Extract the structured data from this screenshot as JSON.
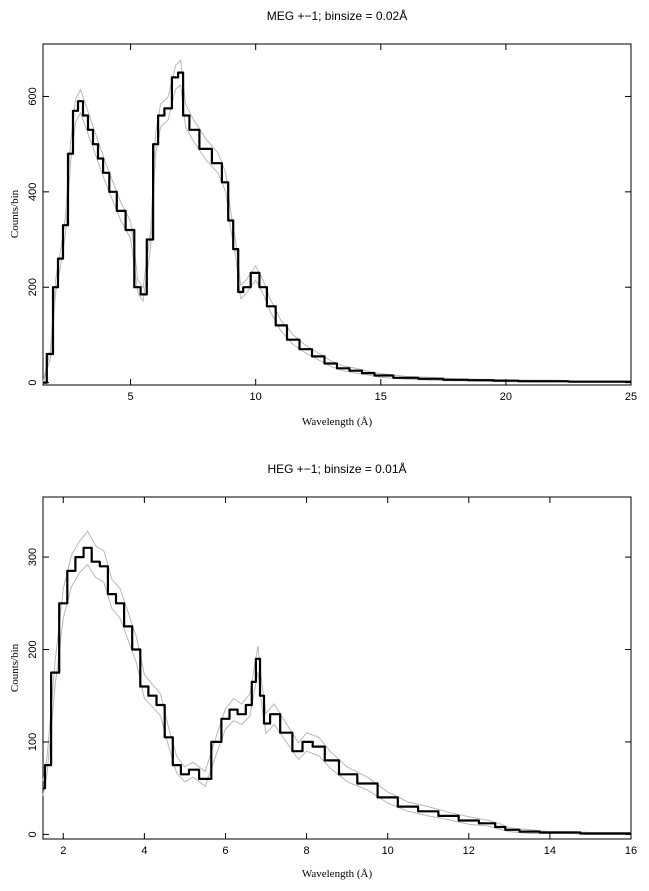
{
  "chart_data": [
    {
      "type": "line",
      "title": "MEG +−1; binsize = 0.02Å",
      "xlabel": "Wavelength (Å)",
      "ylabel": "Counts/bin",
      "xlim": [
        1.5,
        25
      ],
      "ylim": [
        -5,
        710
      ],
      "xticks": [
        5,
        10,
        15,
        20,
        25
      ],
      "yticks": [
        0,
        200,
        400,
        600
      ],
      "x": [
        1.5,
        1.8,
        2.0,
        2.2,
        2.4,
        2.6,
        2.8,
        3.0,
        3.2,
        3.4,
        3.6,
        3.8,
        4.0,
        4.3,
        4.6,
        5.0,
        5.3,
        5.5,
        5.8,
        6.0,
        6.2,
        6.5,
        6.8,
        7.0,
        7.2,
        7.5,
        8.0,
        8.5,
        8.8,
        9.0,
        9.2,
        9.4,
        9.6,
        10.0,
        10.3,
        10.6,
        11.0,
        11.5,
        12.0,
        12.5,
        13.0,
        13.5,
        14.0,
        14.5,
        15.0,
        16.0,
        17.0,
        18.0,
        19.0,
        20.0,
        21.0,
        22.0,
        23.0,
        24.0,
        25.0
      ],
      "y": [
        0,
        60,
        200,
        260,
        330,
        480,
        570,
        590,
        560,
        530,
        500,
        470,
        440,
        400,
        360,
        320,
        200,
        185,
        300,
        500,
        560,
        575,
        640,
        650,
        560,
        530,
        490,
        460,
        420,
        340,
        280,
        190,
        200,
        230,
        200,
        160,
        120,
        90,
        70,
        55,
        40,
        30,
        25,
        20,
        15,
        10,
        8,
        6,
        5,
        4,
        3,
        3,
        2,
        2,
        2
      ],
      "y_error": [
        2,
        8,
        14,
        16,
        18,
        22,
        24,
        24,
        24,
        23,
        22,
        22,
        21,
        20,
        19,
        18,
        14,
        14,
        17,
        22,
        24,
        24,
        25,
        26,
        24,
        23,
        22,
        21,
        20,
        18,
        17,
        14,
        14,
        15,
        14,
        13,
        11,
        10,
        8,
        7,
        6,
        5,
        5,
        4,
        4,
        3,
        3,
        2,
        2,
        2,
        2,
        2,
        1,
        1,
        1
      ]
    },
    {
      "type": "line",
      "title": "HEG +−1; binsize = 0.01Å",
      "xlabel": "Wavelength (Å)",
      "ylabel": "Counts/bin",
      "xlim": [
        1.5,
        16
      ],
      "ylim": [
        -5,
        365
      ],
      "xticks": [
        2,
        4,
        6,
        8,
        10,
        12,
        14,
        16
      ],
      "yticks": [
        0,
        100,
        200,
        300
      ],
      "x": [
        1.5,
        1.6,
        1.8,
        2.0,
        2.2,
        2.4,
        2.6,
        2.8,
        3.0,
        3.2,
        3.4,
        3.6,
        3.8,
        4.0,
        4.2,
        4.4,
        4.6,
        4.8,
        5.0,
        5.2,
        5.5,
        5.8,
        6.0,
        6.2,
        6.4,
        6.6,
        6.7,
        6.8,
        6.9,
        7.0,
        7.2,
        7.5,
        7.8,
        8.0,
        8.3,
        8.6,
        9.0,
        9.5,
        10.0,
        10.5,
        11.0,
        11.5,
        12.0,
        12.5,
        12.8,
        13.0,
        13.5,
        14.0,
        14.5,
        15.0,
        15.5,
        16.0
      ],
      "y": [
        50,
        75,
        175,
        250,
        285,
        300,
        310,
        295,
        290,
        260,
        250,
        225,
        200,
        160,
        150,
        140,
        105,
        75,
        65,
        70,
        60,
        100,
        125,
        135,
        130,
        140,
        165,
        190,
        150,
        120,
        130,
        110,
        90,
        100,
        95,
        80,
        65,
        55,
        40,
        30,
        25,
        20,
        15,
        12,
        8,
        5,
        3,
        2,
        2,
        1,
        1,
        1
      ],
      "y_error": [
        8,
        9,
        13,
        16,
        17,
        17,
        18,
        17,
        17,
        16,
        16,
        15,
        14,
        13,
        12,
        12,
        10,
        9,
        8,
        8,
        8,
        10,
        11,
        12,
        11,
        12,
        13,
        14,
        12,
        11,
        11,
        10,
        9,
        10,
        10,
        9,
        8,
        7,
        6,
        5,
        5,
        4,
        4,
        3,
        3,
        2,
        2,
        1,
        1,
        1,
        1,
        1
      ]
    }
  ]
}
